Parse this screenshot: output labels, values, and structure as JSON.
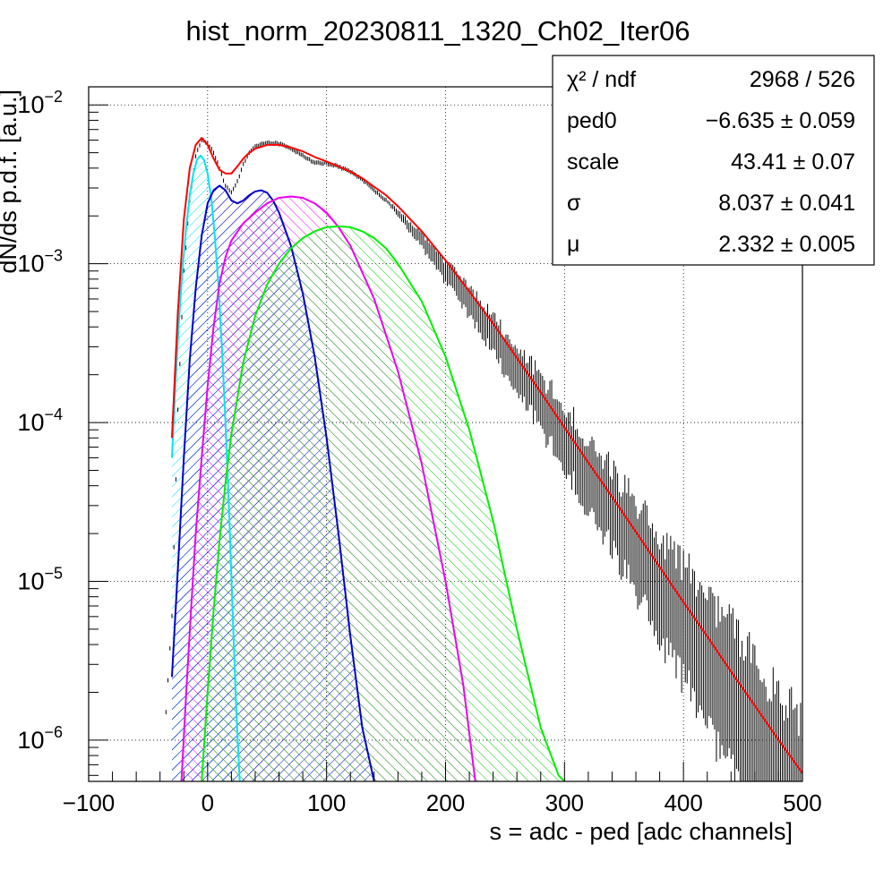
{
  "chart_data": {
    "type": "line",
    "title": "hist_norm_20230811_1320_Ch02_Iter06",
    "xlabel": "s = adc - ped [adc channels]",
    "ylabel": "dN/ds p.d.f. [a.u.]",
    "xlim": [
      -100,
      500
    ],
    "ylim": [
      5.5e-07,
      0.013
    ],
    "yscale": "log",
    "grid": true,
    "x_ticks": [
      -100,
      0,
      100,
      200,
      300,
      400,
      500
    ],
    "x_tick_labels": [
      "−100",
      "0",
      "100",
      "200",
      "300",
      "400",
      "500"
    ],
    "y_ticks": [
      {
        "base": "10",
        "exp": "−2",
        "value": 0.01
      },
      {
        "base": "10",
        "exp": "−3",
        "value": 0.001
      },
      {
        "base": "10",
        "exp": "−4",
        "value": 0.0001
      },
      {
        "base": "10",
        "exp": "−5",
        "value": 1e-05
      },
      {
        "base": "10",
        "exp": "−6",
        "value": 1e-06
      }
    ],
    "stats_box": {
      "position": "top-right",
      "rows": [
        {
          "label": "χ² / ndf",
          "value": "2968 / 526"
        },
        {
          "label": "ped0",
          "value": "−6.635 ± 0.059"
        },
        {
          "label": "scale",
          "value": "43.41 ± 0.07"
        },
        {
          "label": "σ",
          "value": "8.037 ± 0.041"
        },
        {
          "label": "μ",
          "value": "2.332 ± 0.005"
        }
      ]
    },
    "data_histogram": {
      "color": "#000000",
      "x": [
        -35,
        -30,
        -25,
        -20,
        -15,
        -10,
        -5,
        0,
        5,
        10,
        15,
        20,
        25,
        30,
        35,
        40,
        50,
        60,
        70,
        80,
        90,
        100,
        110,
        120,
        130,
        140,
        150,
        160,
        180,
        200,
        220,
        240,
        260,
        280,
        300,
        320,
        340,
        360,
        380,
        400,
        420,
        440,
        460,
        480,
        500
      ],
      "y": [
        1.5e-06,
        6e-06,
        0.00012,
        0.0009,
        0.0025,
        0.0048,
        0.006,
        0.0058,
        0.005,
        0.004,
        0.0031,
        0.0028,
        0.0033,
        0.0042,
        0.005,
        0.0055,
        0.0058,
        0.0057,
        0.0053,
        0.0048,
        0.0043,
        0.0043,
        0.0041,
        0.0038,
        0.0034,
        0.0029,
        0.0025,
        0.0021,
        0.0014,
        0.0009,
        0.0006,
        0.00038,
        0.00023,
        0.000145,
        9e-05,
        5.5e-05,
        3.4e-05,
        2e-05,
        1.25e-05,
        7.8e-06,
        4.8e-06,
        3e-06,
        1.9e-06,
        1.1e-06,
        7e-07
      ]
    },
    "series": [
      {
        "color": "#ff0000",
        "role": "total fit",
        "x": [
          -30,
          -25,
          -20,
          -15,
          -10,
          -5,
          0,
          5,
          10,
          15,
          20,
          25,
          30,
          35,
          40,
          50,
          60,
          70,
          80,
          90,
          100,
          110,
          120,
          130,
          140,
          150,
          160,
          180,
          200,
          220,
          240,
          260,
          280,
          300,
          320,
          340,
          360,
          380,
          400,
          420,
          440,
          460,
          480,
          500
        ],
        "y": [
          8e-05,
          0.0005,
          0.0019,
          0.004,
          0.0056,
          0.0062,
          0.0056,
          0.0046,
          0.0039,
          0.0037,
          0.0037,
          0.0041,
          0.0046,
          0.005,
          0.0053,
          0.0056,
          0.0056,
          0.0054,
          0.0051,
          0.0047,
          0.0044,
          0.0041,
          0.0038,
          0.00345,
          0.00305,
          0.0027,
          0.0023,
          0.0016,
          0.00105,
          0.00067,
          0.00042,
          0.000255,
          0.000155,
          9.3e-05,
          5.6e-05,
          3.4e-05,
          2.05e-05,
          1.23e-05,
          7.4e-06,
          4.5e-06,
          2.7e-06,
          1.65e-06,
          1e-06,
          6.2e-07
        ]
      },
      {
        "color": "#00e5ee",
        "role": "component",
        "x": [
          -30,
          -27,
          -24,
          -21,
          -18,
          -15,
          -12,
          -9,
          -6,
          -3,
          0,
          3,
          6,
          9,
          12,
          15,
          18,
          21,
          24,
          27
        ],
        "y": [
          6e-05,
          0.00018,
          0.00045,
          0.00095,
          0.0017,
          0.0027,
          0.0037,
          0.0045,
          0.0048,
          0.0045,
          0.0037,
          0.0026,
          0.0015,
          0.00075,
          0.0003,
          0.0001,
          2.8e-05,
          6.5e-06,
          1.6e-06,
          5.5e-07
        ]
      },
      {
        "color": "#0000cc",
        "role": "component",
        "x": [
          -30,
          -25,
          -20,
          -15,
          -10,
          -5,
          0,
          5,
          10,
          15,
          20,
          25,
          30,
          35,
          40,
          45,
          50,
          55,
          60,
          70,
          80,
          90,
          100,
          110,
          120,
          130,
          140
        ],
        "y": [
          2.5e-06,
          1.2e-05,
          6e-05,
          0.00025,
          0.0007,
          0.0015,
          0.0024,
          0.0029,
          0.0031,
          0.0029,
          0.0025,
          0.0024,
          0.0025,
          0.0027,
          0.00285,
          0.0029,
          0.0028,
          0.0025,
          0.0021,
          0.0013,
          0.00065,
          0.00026,
          8e-05,
          2e-05,
          4.5e-06,
          1.2e-06,
          5.5e-07
        ]
      },
      {
        "color": "#ee00ee",
        "role": "component",
        "x": [
          -22,
          -18,
          -14,
          -10,
          -5,
          0,
          5,
          10,
          15,
          20,
          30,
          40,
          50,
          60,
          70,
          80,
          90,
          100,
          110,
          120,
          140,
          160,
          180,
          200,
          215,
          225
        ],
        "y": [
          5.5e-07,
          2e-06,
          6.5e-06,
          2e-05,
          6e-05,
          0.00017,
          0.0004,
          0.00075,
          0.0011,
          0.0014,
          0.0018,
          0.0021,
          0.0024,
          0.0026,
          0.00265,
          0.0026,
          0.0024,
          0.0021,
          0.0017,
          0.0013,
          0.0006,
          0.00021,
          5.5e-05,
          1e-05,
          2.2e-06,
          5.5e-07
        ]
      },
      {
        "color": "#00ee00",
        "role": "component",
        "x": [
          -5,
          0,
          5,
          10,
          15,
          20,
          30,
          40,
          50,
          60,
          70,
          80,
          90,
          100,
          110,
          120,
          130,
          140,
          150,
          160,
          180,
          200,
          220,
          240,
          260,
          280,
          295,
          300
        ],
        "y": [
          5.5e-07,
          2e-06,
          6.5e-06,
          1.8e-05,
          4.2e-05,
          8.5e-05,
          0.00024,
          0.00047,
          0.00074,
          0.001,
          0.00125,
          0.00145,
          0.0016,
          0.0017,
          0.00172,
          0.0017,
          0.0016,
          0.00145,
          0.00125,
          0.001,
          0.00058,
          0.00026,
          9e-05,
          2.4e-05,
          5e-06,
          1.2e-06,
          6e-07,
          5.5e-07
        ]
      }
    ]
  }
}
